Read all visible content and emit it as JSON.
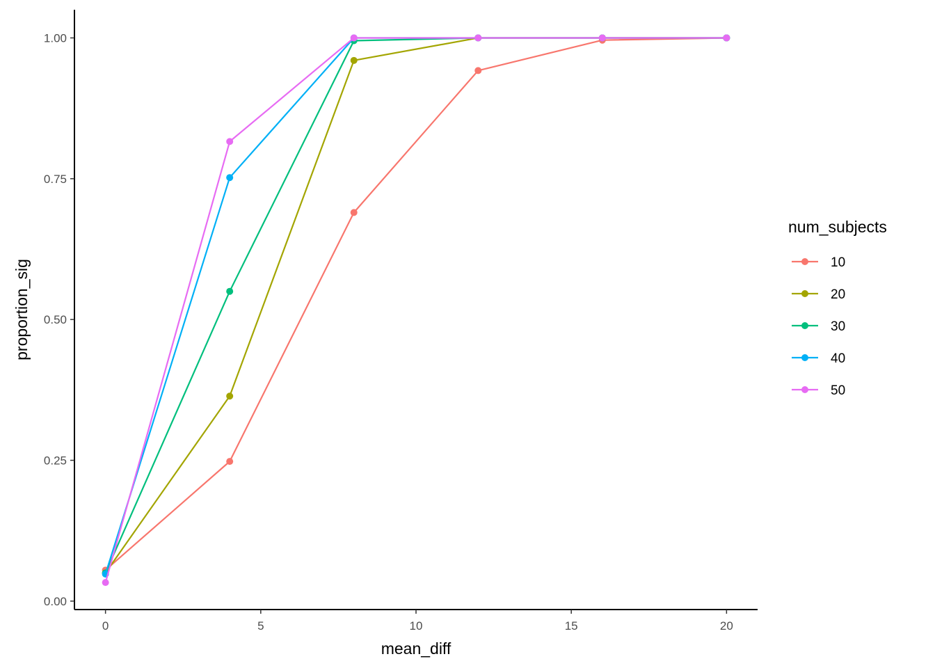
{
  "chart_data": {
    "type": "line",
    "title": "",
    "xlabel": "mean_diff",
    "ylabel": "proportion_sig",
    "x": [
      0,
      4,
      8,
      12,
      16,
      20
    ],
    "xlim": [
      -1,
      21
    ],
    "ylim": [
      -0.015,
      1.05
    ],
    "xticks": [
      0,
      5,
      10,
      15,
      20
    ],
    "xtick_labels": [
      "0",
      "5",
      "10",
      "15",
      "20"
    ],
    "yticks": [
      0,
      0.25,
      0.5,
      0.75,
      1.0
    ],
    "ytick_labels": [
      "0.00",
      "0.25",
      "0.50",
      "0.75",
      "1.00"
    ],
    "grid": false,
    "legend": {
      "title": "num_subjects",
      "position": "right"
    },
    "series": [
      {
        "name": "10",
        "color": "#F8766D",
        "values": [
          0.055,
          0.248,
          0.69,
          0.942,
          0.996,
          1.0
        ]
      },
      {
        "name": "20",
        "color": "#A3A500",
        "values": [
          0.05,
          0.364,
          0.96,
          1.0,
          1.0,
          1.0
        ]
      },
      {
        "name": "30",
        "color": "#00BF7D",
        "values": [
          0.05,
          0.55,
          0.995,
          1.0,
          1.0,
          1.0
        ]
      },
      {
        "name": "40",
        "color": "#00B0F6",
        "values": [
          0.048,
          0.752,
          1.0,
          1.0,
          1.0,
          1.0
        ]
      },
      {
        "name": "50",
        "color": "#E76BF3",
        "values": [
          0.033,
          0.816,
          1.0,
          1.0,
          1.0,
          1.0
        ]
      }
    ]
  }
}
